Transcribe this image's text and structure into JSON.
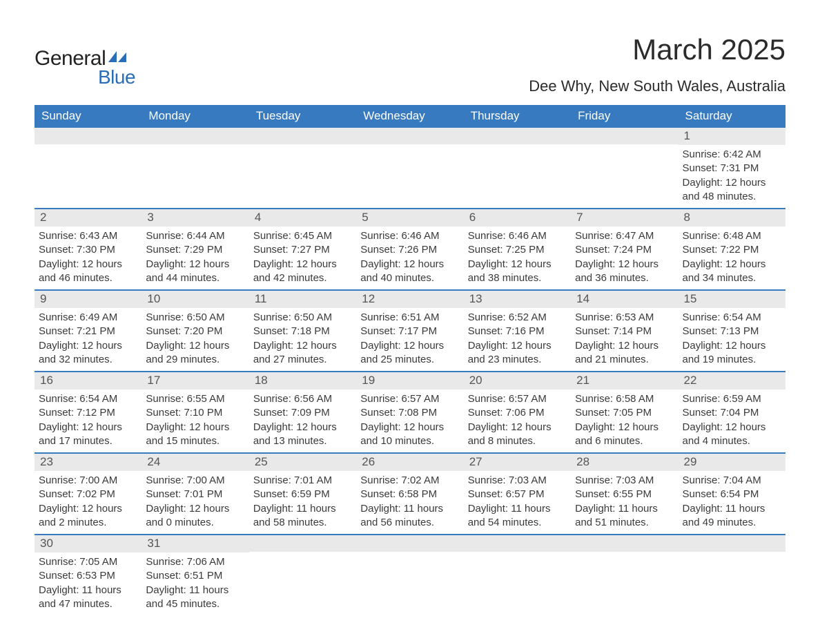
{
  "logo": {
    "text_general": "General",
    "text_blue": "Blue",
    "shape_color": "#2a6db8"
  },
  "title": "March 2025",
  "location": "Dee Why, New South Wales, Australia",
  "colors": {
    "header_bg": "#387abf",
    "header_text": "#ffffff",
    "daynum_bg": "#e9e9e9",
    "daynum_text": "#555555",
    "body_text": "#3a3a3a",
    "row_border": "#387abf",
    "page_bg": "#ffffff"
  },
  "fonts": {
    "title_size_pt": 32,
    "location_size_pt": 17,
    "dow_size_pt": 13,
    "daynum_size_pt": 13,
    "body_size_pt": 11
  },
  "days_of_week": [
    "Sunday",
    "Monday",
    "Tuesday",
    "Wednesday",
    "Thursday",
    "Friday",
    "Saturday"
  ],
  "weeks": [
    [
      {
        "day": "",
        "sunrise": "",
        "sunset": "",
        "daylight1": "",
        "daylight2": ""
      },
      {
        "day": "",
        "sunrise": "",
        "sunset": "",
        "daylight1": "",
        "daylight2": ""
      },
      {
        "day": "",
        "sunrise": "",
        "sunset": "",
        "daylight1": "",
        "daylight2": ""
      },
      {
        "day": "",
        "sunrise": "",
        "sunset": "",
        "daylight1": "",
        "daylight2": ""
      },
      {
        "day": "",
        "sunrise": "",
        "sunset": "",
        "daylight1": "",
        "daylight2": ""
      },
      {
        "day": "",
        "sunrise": "",
        "sunset": "",
        "daylight1": "",
        "daylight2": ""
      },
      {
        "day": "1",
        "sunrise": "Sunrise: 6:42 AM",
        "sunset": "Sunset: 7:31 PM",
        "daylight1": "Daylight: 12 hours",
        "daylight2": "and 48 minutes."
      }
    ],
    [
      {
        "day": "2",
        "sunrise": "Sunrise: 6:43 AM",
        "sunset": "Sunset: 7:30 PM",
        "daylight1": "Daylight: 12 hours",
        "daylight2": "and 46 minutes."
      },
      {
        "day": "3",
        "sunrise": "Sunrise: 6:44 AM",
        "sunset": "Sunset: 7:29 PM",
        "daylight1": "Daylight: 12 hours",
        "daylight2": "and 44 minutes."
      },
      {
        "day": "4",
        "sunrise": "Sunrise: 6:45 AM",
        "sunset": "Sunset: 7:27 PM",
        "daylight1": "Daylight: 12 hours",
        "daylight2": "and 42 minutes."
      },
      {
        "day": "5",
        "sunrise": "Sunrise: 6:46 AM",
        "sunset": "Sunset: 7:26 PM",
        "daylight1": "Daylight: 12 hours",
        "daylight2": "and 40 minutes."
      },
      {
        "day": "6",
        "sunrise": "Sunrise: 6:46 AM",
        "sunset": "Sunset: 7:25 PM",
        "daylight1": "Daylight: 12 hours",
        "daylight2": "and 38 minutes."
      },
      {
        "day": "7",
        "sunrise": "Sunrise: 6:47 AM",
        "sunset": "Sunset: 7:24 PM",
        "daylight1": "Daylight: 12 hours",
        "daylight2": "and 36 minutes."
      },
      {
        "day": "8",
        "sunrise": "Sunrise: 6:48 AM",
        "sunset": "Sunset: 7:22 PM",
        "daylight1": "Daylight: 12 hours",
        "daylight2": "and 34 minutes."
      }
    ],
    [
      {
        "day": "9",
        "sunrise": "Sunrise: 6:49 AM",
        "sunset": "Sunset: 7:21 PM",
        "daylight1": "Daylight: 12 hours",
        "daylight2": "and 32 minutes."
      },
      {
        "day": "10",
        "sunrise": "Sunrise: 6:50 AM",
        "sunset": "Sunset: 7:20 PM",
        "daylight1": "Daylight: 12 hours",
        "daylight2": "and 29 minutes."
      },
      {
        "day": "11",
        "sunrise": "Sunrise: 6:50 AM",
        "sunset": "Sunset: 7:18 PM",
        "daylight1": "Daylight: 12 hours",
        "daylight2": "and 27 minutes."
      },
      {
        "day": "12",
        "sunrise": "Sunrise: 6:51 AM",
        "sunset": "Sunset: 7:17 PM",
        "daylight1": "Daylight: 12 hours",
        "daylight2": "and 25 minutes."
      },
      {
        "day": "13",
        "sunrise": "Sunrise: 6:52 AM",
        "sunset": "Sunset: 7:16 PM",
        "daylight1": "Daylight: 12 hours",
        "daylight2": "and 23 minutes."
      },
      {
        "day": "14",
        "sunrise": "Sunrise: 6:53 AM",
        "sunset": "Sunset: 7:14 PM",
        "daylight1": "Daylight: 12 hours",
        "daylight2": "and 21 minutes."
      },
      {
        "day": "15",
        "sunrise": "Sunrise: 6:54 AM",
        "sunset": "Sunset: 7:13 PM",
        "daylight1": "Daylight: 12 hours",
        "daylight2": "and 19 minutes."
      }
    ],
    [
      {
        "day": "16",
        "sunrise": "Sunrise: 6:54 AM",
        "sunset": "Sunset: 7:12 PM",
        "daylight1": "Daylight: 12 hours",
        "daylight2": "and 17 minutes."
      },
      {
        "day": "17",
        "sunrise": "Sunrise: 6:55 AM",
        "sunset": "Sunset: 7:10 PM",
        "daylight1": "Daylight: 12 hours",
        "daylight2": "and 15 minutes."
      },
      {
        "day": "18",
        "sunrise": "Sunrise: 6:56 AM",
        "sunset": "Sunset: 7:09 PM",
        "daylight1": "Daylight: 12 hours",
        "daylight2": "and 13 minutes."
      },
      {
        "day": "19",
        "sunrise": "Sunrise: 6:57 AM",
        "sunset": "Sunset: 7:08 PM",
        "daylight1": "Daylight: 12 hours",
        "daylight2": "and 10 minutes."
      },
      {
        "day": "20",
        "sunrise": "Sunrise: 6:57 AM",
        "sunset": "Sunset: 7:06 PM",
        "daylight1": "Daylight: 12 hours",
        "daylight2": "and 8 minutes."
      },
      {
        "day": "21",
        "sunrise": "Sunrise: 6:58 AM",
        "sunset": "Sunset: 7:05 PM",
        "daylight1": "Daylight: 12 hours",
        "daylight2": "and 6 minutes."
      },
      {
        "day": "22",
        "sunrise": "Sunrise: 6:59 AM",
        "sunset": "Sunset: 7:04 PM",
        "daylight1": "Daylight: 12 hours",
        "daylight2": "and 4 minutes."
      }
    ],
    [
      {
        "day": "23",
        "sunrise": "Sunrise: 7:00 AM",
        "sunset": "Sunset: 7:02 PM",
        "daylight1": "Daylight: 12 hours",
        "daylight2": "and 2 minutes."
      },
      {
        "day": "24",
        "sunrise": "Sunrise: 7:00 AM",
        "sunset": "Sunset: 7:01 PM",
        "daylight1": "Daylight: 12 hours",
        "daylight2": "and 0 minutes."
      },
      {
        "day": "25",
        "sunrise": "Sunrise: 7:01 AM",
        "sunset": "Sunset: 6:59 PM",
        "daylight1": "Daylight: 11 hours",
        "daylight2": "and 58 minutes."
      },
      {
        "day": "26",
        "sunrise": "Sunrise: 7:02 AM",
        "sunset": "Sunset: 6:58 PM",
        "daylight1": "Daylight: 11 hours",
        "daylight2": "and 56 minutes."
      },
      {
        "day": "27",
        "sunrise": "Sunrise: 7:03 AM",
        "sunset": "Sunset: 6:57 PM",
        "daylight1": "Daylight: 11 hours",
        "daylight2": "and 54 minutes."
      },
      {
        "day": "28",
        "sunrise": "Sunrise: 7:03 AM",
        "sunset": "Sunset: 6:55 PM",
        "daylight1": "Daylight: 11 hours",
        "daylight2": "and 51 minutes."
      },
      {
        "day": "29",
        "sunrise": "Sunrise: 7:04 AM",
        "sunset": "Sunset: 6:54 PM",
        "daylight1": "Daylight: 11 hours",
        "daylight2": "and 49 minutes."
      }
    ],
    [
      {
        "day": "30",
        "sunrise": "Sunrise: 7:05 AM",
        "sunset": "Sunset: 6:53 PM",
        "daylight1": "Daylight: 11 hours",
        "daylight2": "and 47 minutes."
      },
      {
        "day": "31",
        "sunrise": "Sunrise: 7:06 AM",
        "sunset": "Sunset: 6:51 PM",
        "daylight1": "Daylight: 11 hours",
        "daylight2": "and 45 minutes."
      },
      {
        "day": "",
        "sunrise": "",
        "sunset": "",
        "daylight1": "",
        "daylight2": ""
      },
      {
        "day": "",
        "sunrise": "",
        "sunset": "",
        "daylight1": "",
        "daylight2": ""
      },
      {
        "day": "",
        "sunrise": "",
        "sunset": "",
        "daylight1": "",
        "daylight2": ""
      },
      {
        "day": "",
        "sunrise": "",
        "sunset": "",
        "daylight1": "",
        "daylight2": ""
      },
      {
        "day": "",
        "sunrise": "",
        "sunset": "",
        "daylight1": "",
        "daylight2": ""
      }
    ]
  ]
}
